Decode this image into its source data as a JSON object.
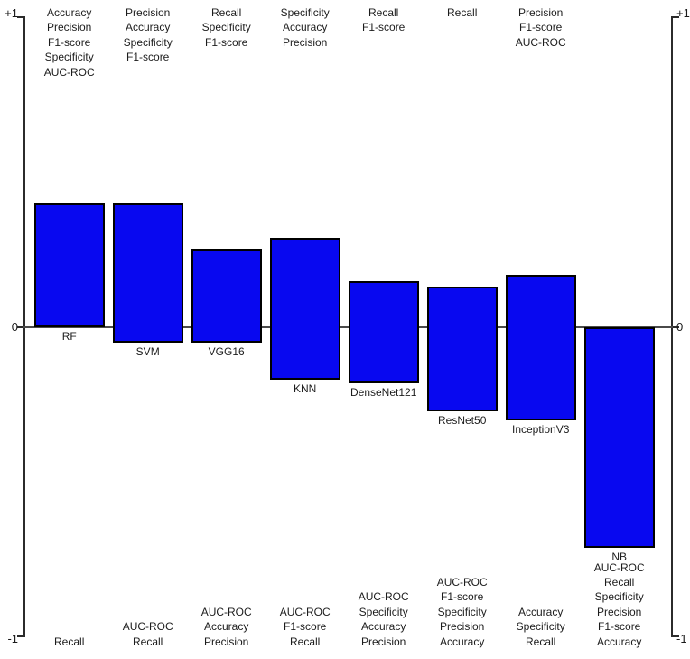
{
  "chart_data": {
    "type": "bar",
    "subtype": "floating-range-bars",
    "title": "",
    "xlabel": "",
    "ylabel": "",
    "ylim": [
      -1,
      1
    ],
    "grid": false,
    "legend": "none",
    "bar_color": "#0808f0",
    "bar_border_color": "#000000",
    "yticks": [
      {
        "value": 1,
        "label": "+1"
      },
      {
        "value": 0,
        "label": "0"
      },
      {
        "value": -1,
        "label": "-1"
      }
    ],
    "categories": [
      "RF",
      "SVM",
      "VGG16",
      "KNN",
      "DenseNet121",
      "ResNet50",
      "InceptionV3",
      "NB"
    ],
    "models": [
      {
        "name": "RF",
        "range": [
          0.0,
          0.4
        ],
        "top_metrics": [
          "Accuracy",
          "Precision",
          "F1-score",
          "Specificity",
          "AUC-ROC"
        ],
        "bottom_metrics": [
          "Recall"
        ]
      },
      {
        "name": "SVM",
        "range": [
          -0.05,
          0.4
        ],
        "top_metrics": [
          "Precision",
          "Accuracy",
          "Specificity",
          "F1-score"
        ],
        "bottom_metrics": [
          "AUC-ROC",
          "Recall"
        ]
      },
      {
        "name": "VGG16",
        "range": [
          -0.05,
          0.25
        ],
        "top_metrics": [
          "Recall",
          "Specificity",
          "F1-score"
        ],
        "bottom_metrics": [
          "AUC-ROC",
          "Accuracy",
          "Precision"
        ]
      },
      {
        "name": "KNN",
        "range": [
          -0.17,
          0.29
        ],
        "top_metrics": [
          "Specificity",
          "Accuracy",
          "Precision"
        ],
        "bottom_metrics": [
          "AUC-ROC",
          "F1-score",
          "Recall"
        ]
      },
      {
        "name": "DenseNet121",
        "range": [
          -0.18,
          0.15
        ],
        "top_metrics": [
          "Recall",
          "F1-score"
        ],
        "bottom_metrics": [
          "AUC-ROC",
          "Specificity",
          "Accuracy",
          "Precision"
        ]
      },
      {
        "name": "ResNet50",
        "range": [
          -0.27,
          0.13
        ],
        "top_metrics": [
          "Recall"
        ],
        "bottom_metrics": [
          "AUC-ROC",
          "F1-score",
          "Specificity",
          "Precision",
          "Accuracy"
        ]
      },
      {
        "name": "InceptionV3",
        "range": [
          -0.3,
          0.17
        ],
        "top_metrics": [
          "Precision",
          "F1-score",
          "AUC-ROC"
        ],
        "bottom_metrics": [
          "Accuracy",
          "Specificity",
          "Recall"
        ]
      },
      {
        "name": "NB",
        "range": [
          -0.71,
          0.0
        ],
        "top_metrics": [],
        "bottom_metrics": [
          "AUC-ROC",
          "Recall",
          "Specificity",
          "Precision",
          "F1-score",
          "Accuracy"
        ]
      }
    ]
  }
}
